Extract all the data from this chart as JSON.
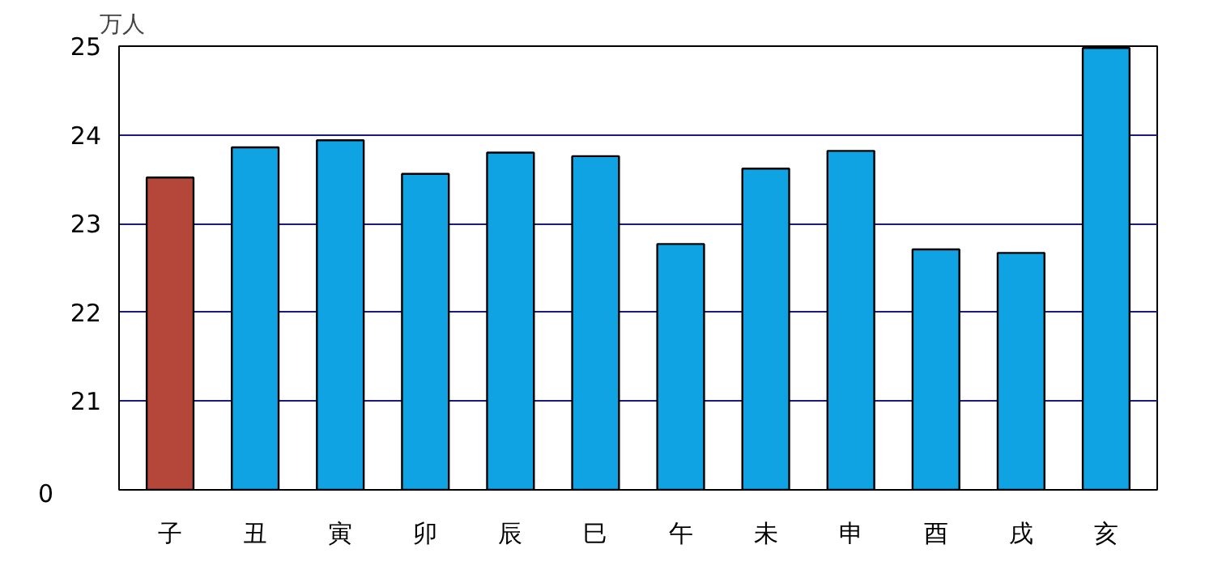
{
  "chart_data": {
    "type": "bar",
    "ylabel": "万人",
    "categories": [
      "子",
      "丑",
      "寅",
      "卯",
      "辰",
      "巳",
      "午",
      "未",
      "申",
      "酉",
      "戌",
      "亥"
    ],
    "values": [
      23.52,
      23.86,
      23.94,
      23.56,
      23.8,
      23.76,
      22.77,
      23.62,
      23.82,
      22.71,
      22.67,
      24.98
    ],
    "colors": [
      "#b5473a",
      "#0fa3e3",
      "#0fa3e3",
      "#0fa3e3",
      "#0fa3e3",
      "#0fa3e3",
      "#0fa3e3",
      "#0fa3e3",
      "#0fa3e3",
      "#0fa3e3",
      "#0fa3e3",
      "#0fa3e3"
    ],
    "ylim": [
      20,
      25
    ],
    "yticks": [
      {
        "value": 20,
        "label": null
      },
      21,
      22,
      23,
      24,
      25
    ],
    "annotations": [
      "0"
    ],
    "grid": "y"
  }
}
